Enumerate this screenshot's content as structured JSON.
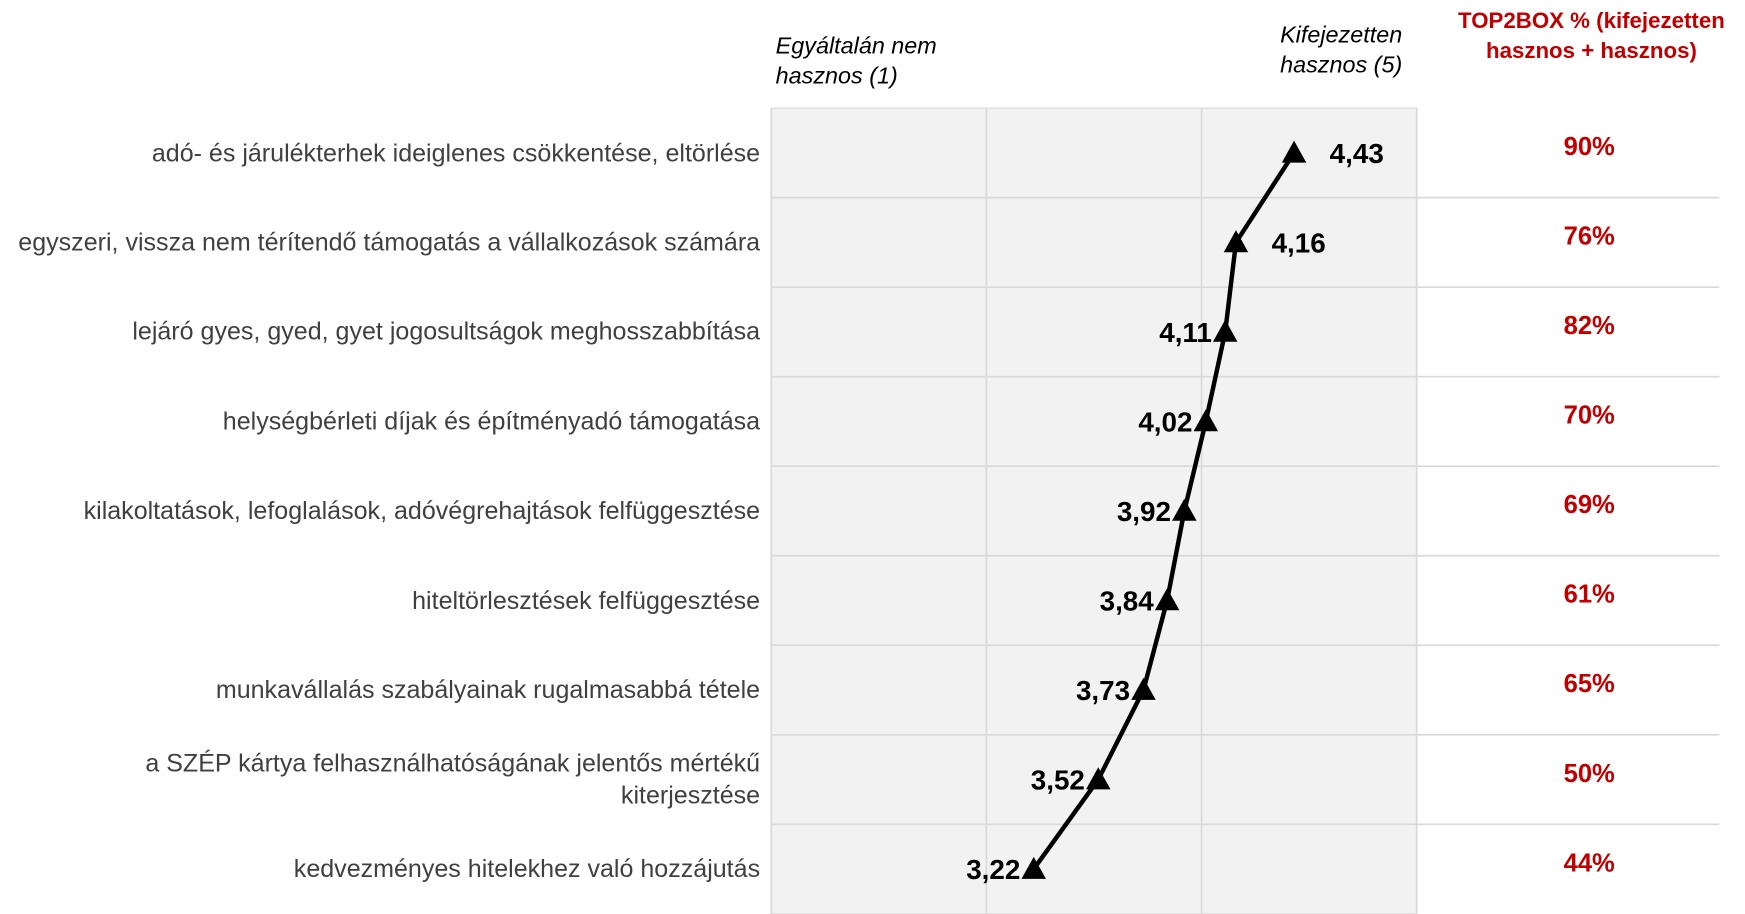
{
  "chart_data": {
    "type": "line",
    "categories": [
      "adó- és járulékterhek ideiglenes csökkentése, eltörlése",
      "egyszeri, vissza nem térítendő támogatás a vállalkozások számára",
      "lejáró gyes, gyed, gyet jogosultságok meghosszabbítása",
      "helységbérleti díjak és építményadó támogatása",
      "kilakoltatások, lefoglalások, adóvégrehajtások felfüggesztése",
      "hiteltörlesztések felfüggesztése",
      "munkavállalás szabályainak rugalmasabbá tétele",
      "a SZÉP kártya felhasználhatóságának jelentős mértékű kiterjesztése",
      "kedvezményes hitelekhez való hozzájutás"
    ],
    "values": [
      4.43,
      4.16,
      4.11,
      4.02,
      3.92,
      3.84,
      3.73,
      3.52,
      3.22
    ],
    "value_labels": [
      "4,43",
      "4,16",
      "4,11",
      "4,02",
      "3,92",
      "3,84",
      "3,73",
      "3,52",
      "3,22"
    ],
    "color": "#000000",
    "xlim": [
      2,
      5
    ],
    "xticks": [
      2,
      3,
      4,
      5
    ],
    "grid": true,
    "annotations": {
      "low": "Egyáltalán nem hasznos (1)",
      "high": "Kifejezetten hasznos (5)"
    },
    "top2box": {
      "title": "TOP2BOX % (kifejezetten hasznos + hasznos)",
      "color": "#c00000",
      "values": [
        90,
        76,
        82,
        70,
        69,
        61,
        65,
        50,
        44
      ],
      "value_labels": [
        "90%",
        "76%",
        "82%",
        "70%",
        "69%",
        "61%",
        "65%",
        "50%",
        "44%"
      ]
    }
  }
}
